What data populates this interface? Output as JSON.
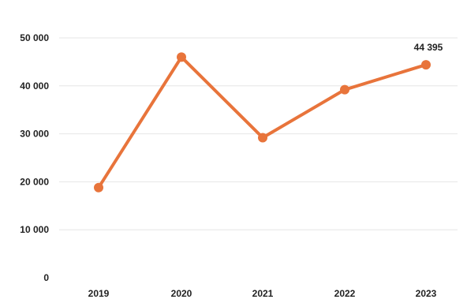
{
  "chart_data": {
    "type": "line",
    "categories": [
      "2019",
      "2020",
      "2021",
      "2022",
      "2023"
    ],
    "series": [
      {
        "values": [
          18800,
          46000,
          29200,
          39200,
          44395
        ],
        "color": "#e8743b"
      }
    ],
    "y_ticks": [
      "0",
      "10 000",
      "20 000",
      "30 000",
      "40 000",
      "50 000"
    ],
    "y_tick_values": [
      0,
      10000,
      20000,
      30000,
      40000,
      50000
    ],
    "ylim": [
      0,
      50000
    ],
    "data_labels": [
      {
        "category_index": 4,
        "text": "44 395"
      }
    ],
    "grid": true,
    "legend": "none"
  }
}
